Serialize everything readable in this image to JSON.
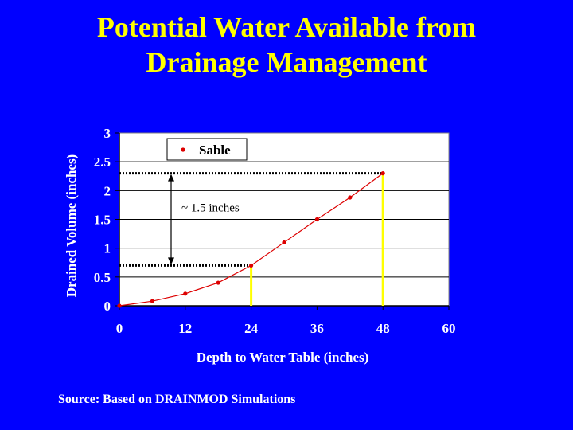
{
  "slide": {
    "title_line1": "Potential Water Available from",
    "title_line2": "Drainage Management",
    "source": "Source: Based on DRAINMOD Simulations"
  },
  "colors": {
    "background": "#0000ff",
    "title": "#ffff00",
    "plot_area": "#ffffff",
    "series": "#dd0000",
    "guide_line": "#ffff00"
  },
  "chart_data": {
    "type": "line",
    "title": "",
    "xlabel": "Depth to Water Table (inches)",
    "ylabel": "Drained Volume (inches)",
    "xlim": [
      0,
      60
    ],
    "ylim": [
      0,
      3
    ],
    "xticks": [
      0,
      12,
      24,
      36,
      48,
      60
    ],
    "yticks": [
      0,
      0.5,
      1,
      1.5,
      2,
      2.5,
      3
    ],
    "grid": "horizontal",
    "legend": "top-left",
    "series": [
      {
        "name": "Sable",
        "x": [
          0,
          6,
          12,
          18,
          24,
          30,
          36,
          42,
          48
        ],
        "y": [
          0,
          0.08,
          0.21,
          0.4,
          0.7,
          1.1,
          1.5,
          1.88,
          2.3
        ]
      }
    ],
    "annotations": [
      {
        "text": "~ 1.5 inches",
        "from_y": 0.7,
        "to_y": 2.3,
        "x_low": 24,
        "x_high": 48
      }
    ]
  }
}
